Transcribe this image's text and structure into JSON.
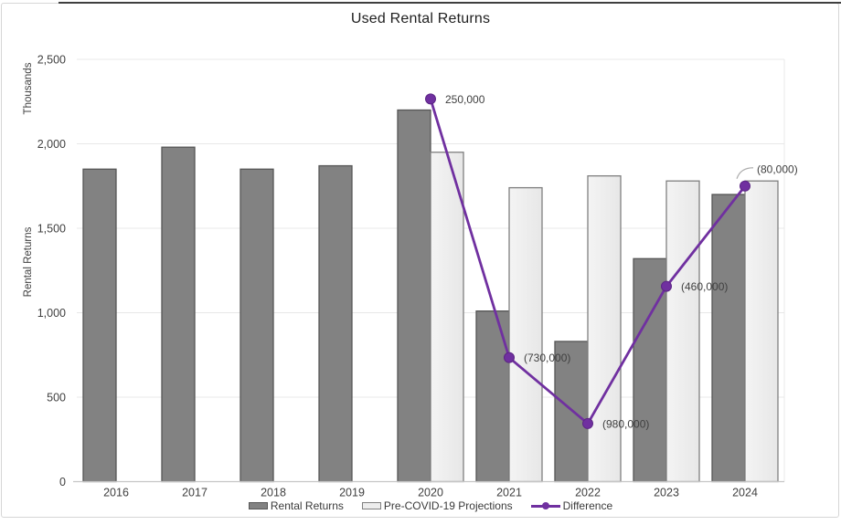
{
  "window": {
    "title": "Used Rental Returns"
  },
  "chart_data": {
    "type": "combo-bar-line",
    "title": "Used Rental Returns",
    "categories": [
      "2016",
      "2017",
      "2018",
      "2019",
      "2020",
      "2021",
      "2022",
      "2023",
      "2024"
    ],
    "series": [
      {
        "name": "Rental Returns",
        "type": "bar",
        "color": "#828282",
        "border_color": "#565656",
        "values": [
          1850,
          1980,
          1850,
          1870,
          2200,
          1010,
          830,
          1320,
          1700
        ]
      },
      {
        "name": "Pre-COVID-19 Projections",
        "type": "bar",
        "color": "#ededed",
        "border_color": "#7f7f7f",
        "values": [
          null,
          null,
          null,
          null,
          1950,
          1740,
          1810,
          1780,
          1780
        ]
      },
      {
        "name": "Difference",
        "type": "line",
        "axis": "secondary",
        "color": "#7030a0",
        "marker": "circle",
        "values": [
          null,
          null,
          null,
          null,
          250,
          -730,
          -980,
          -460,
          -80
        ],
        "data_labels": [
          null,
          null,
          null,
          null,
          "250,000",
          "(730,000)",
          "(980,000)",
          "(460,000)",
          "(80,000)"
        ]
      }
    ],
    "y_axis": {
      "unit_label": "Thousands",
      "title": "Rental Returns",
      "min": 0,
      "max": 2500,
      "step": 500,
      "tick_labels": [
        "0",
        "500",
        "1,000",
        "1,500",
        "2,000",
        "2,500"
      ]
    },
    "secondary_y_axis": {
      "min": -1200,
      "max": 400,
      "visible": false
    },
    "x_axis": {
      "tick_labels": [
        "2016",
        "2017",
        "2018",
        "2019",
        "2020",
        "2021",
        "2022",
        "2023",
        "2024"
      ]
    },
    "legend": {
      "position": "bottom",
      "entries": [
        {
          "label": "Rental Returns",
          "swatch": "bar-dark"
        },
        {
          "label": "Pre-COVID-19 Projections",
          "swatch": "bar-light"
        },
        {
          "label": "Difference",
          "swatch": "line-marker"
        }
      ]
    },
    "grid": true,
    "colors": {
      "line": "#7030a0",
      "data_label": "#7e4bb5",
      "gridline": "#e8e8e8",
      "axis_line": "#c6c6c6",
      "axis_text": "#404040",
      "leader_line": "#adadad"
    }
  }
}
